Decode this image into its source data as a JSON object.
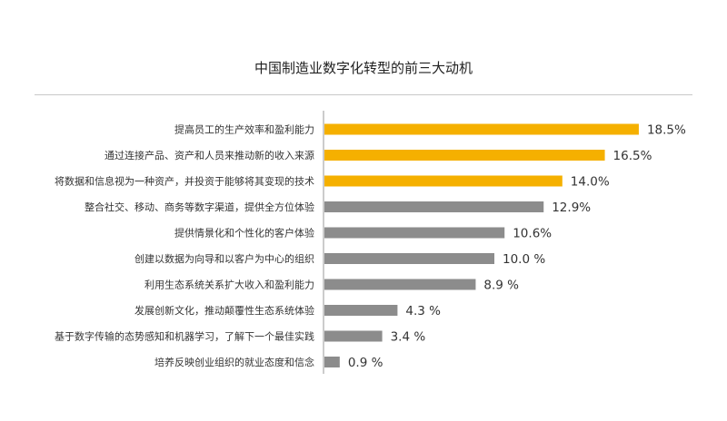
{
  "chart_data": {
    "type": "bar",
    "orientation": "horizontal",
    "title": "中国制造业数字化转型的前三大动机",
    "categories": [
      "提高员工的生产效率和盈利能力",
      "通过连接产品、资产和人员来推动新的收入来源",
      "将数据和信息视为一种资产，并投资于能够将其变现的技术",
      "整合社交、移动、商务等数字渠道，提供全方位体验",
      "提供情景化和个性化的客户体验",
      "创建以数据为向导和以客户为中心的组织",
      "利用生态系统关系扩大收入和盈利能力",
      "发展创新文化，推动颠覆性生态系统体验",
      "基于数字传输的态势感知和机器学习，了解下一个最佳实践",
      "培养反映创业组织的就业态度和信念"
    ],
    "values": [
      18.5,
      16.5,
      14.0,
      12.9,
      10.6,
      10.0,
      8.9,
      4.3,
      3.4,
      0.9
    ],
    "value_labels": [
      "18.5%",
      "16.5%",
      "14.0%",
      "12.9%",
      "10.6%",
      "10.0 %",
      "8.9 %",
      "4.3 %",
      "3.4 %",
      "0.9 %"
    ],
    "highlight_top_n": 3,
    "colors": {
      "highlight": "#F5B000",
      "default": "#8C8C8C",
      "axis": "#999999",
      "rule": "#C8C8C8"
    },
    "xlim": [
      0,
      20
    ],
    "grid": false,
    "legend": "none"
  }
}
